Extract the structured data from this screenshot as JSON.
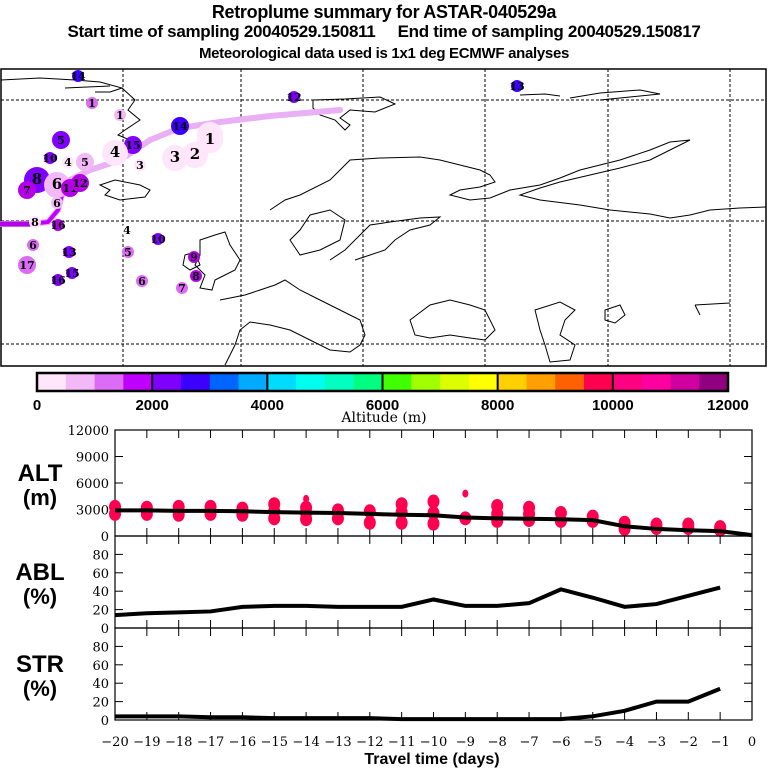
{
  "header": {
    "title": "Retroplume summary for ASTAR-040529a",
    "start_label": "Start time of sampling 20040529.150811",
    "end_label": "End time of sampling 20040529.150817",
    "met_label": "Meteorological data used is 1x1 deg ECMWF analyses"
  },
  "map": {
    "description": "Retroplume track map over North Atlantic / Europe with cluster markers labelled by travel day, colored by altitude",
    "track_color": "#eab0f5",
    "track_color_low": "#b400e6",
    "clusters": [
      {
        "label": "14",
        "color": "#3c00ff",
        "size": "small"
      },
      {
        "label": "1",
        "color": "#dc6cf5",
        "size": "small"
      },
      {
        "label": "1",
        "color": "#f3b8f7",
        "size": "small"
      },
      {
        "label": "12",
        "color": "#8000ff",
        "size": "small"
      },
      {
        "label": "13",
        "color": "#3c00ff",
        "size": "small"
      },
      {
        "label": "14",
        "color": "#3c00ff",
        "size": "medium"
      },
      {
        "label": "1",
        "color": "#ffe6fb",
        "size": "large"
      },
      {
        "label": "1",
        "color": "#ffe6fb",
        "size": "large"
      },
      {
        "label": "3",
        "color": "#ffe6fb",
        "size": "large"
      },
      {
        "label": "2",
        "color": "#ffe6fb",
        "size": "large"
      },
      {
        "label": "15",
        "color": "#8000ff",
        "size": "medium"
      },
      {
        "label": "4",
        "color": "#ffe6fb",
        "size": "large"
      },
      {
        "label": "3",
        "color": "#ffe6fb",
        "size": "small"
      },
      {
        "label": "5",
        "color": "#8000ff",
        "size": "medium"
      },
      {
        "label": "10",
        "color": "#8000ff",
        "size": "small"
      },
      {
        "label": "4",
        "color": "#ffe6fb",
        "size": "small"
      },
      {
        "label": "5",
        "color": "#f3b8f7",
        "size": "medium"
      },
      {
        "label": "8",
        "color": "#8000ff",
        "size": "large"
      },
      {
        "label": "7",
        "color": "#b400e6",
        "size": "medium"
      },
      {
        "label": "6",
        "color": "#f3b8f7",
        "size": "large"
      },
      {
        "label": "11",
        "color": "#b400e6",
        "size": "medium"
      },
      {
        "label": "12",
        "color": "#b400e6",
        "size": "medium"
      },
      {
        "label": "6",
        "color": "#f3b8f7",
        "size": "small"
      },
      {
        "label": "8",
        "color": "#ffe6fb",
        "size": "small"
      },
      {
        "label": "16",
        "color": "#b400e6",
        "size": "small"
      },
      {
        "label": "6",
        "color": "#dc6cf5",
        "size": "small"
      },
      {
        "label": "17",
        "color": "#dc6cf5",
        "size": "medium"
      },
      {
        "label": "13",
        "color": "#8000ff",
        "size": "small"
      },
      {
        "label": "15",
        "color": "#8000ff",
        "size": "small"
      },
      {
        "label": "16",
        "color": "#8000ff",
        "size": "small"
      },
      {
        "label": "4",
        "color": "#ffffff",
        "size": "small"
      },
      {
        "label": "5",
        "color": "#dc6cf5",
        "size": "small"
      },
      {
        "label": "10",
        "color": "#8000ff",
        "size": "small"
      },
      {
        "label": "6",
        "color": "#dc6cf5",
        "size": "small"
      },
      {
        "label": "9",
        "color": "#b400e6",
        "size": "small"
      },
      {
        "label": "8",
        "color": "#b400e6",
        "size": "small"
      },
      {
        "label": "7",
        "color": "#dc6cf5",
        "size": "small"
      }
    ]
  },
  "colorbar": {
    "colors": [
      "#ffe6fb",
      "#f3b8f7",
      "#dc6cf5",
      "#c000ff",
      "#8000ff",
      "#3c00ff",
      "#0064ff",
      "#00aaff",
      "#00dcff",
      "#00ffee",
      "#00ffc0",
      "#00ff80",
      "#40ff00",
      "#a0ff00",
      "#dcff00",
      "#ffff00",
      "#ffd000",
      "#ffa000",
      "#ff6000",
      "#ff0050",
      "#ff0080",
      "#ff00a0",
      "#d000a0",
      "#900080"
    ],
    "tick_labels": [
      "0",
      "2000",
      "4000",
      "6000",
      "8000",
      "10000",
      "12000"
    ],
    "title": "Altitude (m)"
  },
  "chart_data": [
    {
      "type": "scatter",
      "name": "ALT",
      "ylabel": "ALT\n(m)",
      "ylabel_line1": "ALT",
      "ylabel_line2": "(m)",
      "ylim": [
        0,
        12000
      ],
      "yticks": [
        "0",
        "3000",
        "6000",
        "9000",
        "12000"
      ],
      "xlim": [
        -20,
        0
      ],
      "marker_color": "#ff0050",
      "mean_line": {
        "x": [
          -20,
          -19,
          -18,
          -17,
          -16,
          -15,
          -14,
          -13,
          -12,
          -11,
          -10,
          -9,
          -8,
          -7,
          -6,
          -5,
          -4,
          -3,
          -2,
          -1,
          0
        ],
        "y": [
          2900,
          2900,
          2850,
          2850,
          2800,
          2700,
          2650,
          2600,
          2500,
          2400,
          2350,
          2100,
          2000,
          1950,
          1900,
          1800,
          1100,
          800,
          650,
          550,
          100
        ]
      },
      "clusters": [
        {
          "x": -20,
          "y": [
            2500,
            3300
          ]
        },
        {
          "x": -19,
          "y": [
            2500,
            3200
          ]
        },
        {
          "x": -18,
          "y": [
            2400,
            3300
          ]
        },
        {
          "x": -17,
          "y": [
            2500,
            3300
          ]
        },
        {
          "x": -16,
          "y": [
            2400,
            3100
          ]
        },
        {
          "x": -15,
          "y": [
            2000,
            2800,
            3600
          ]
        },
        {
          "x": -14,
          "y": [
            1900,
            2600,
            3200,
            4200
          ]
        },
        {
          "x": -13,
          "y": [
            2000,
            2900
          ]
        },
        {
          "x": -12,
          "y": [
            1500,
            2800
          ]
        },
        {
          "x": -11,
          "y": [
            1500,
            2700,
            3600
          ]
        },
        {
          "x": -10,
          "y": [
            1400,
            2600,
            3900
          ]
        },
        {
          "x": -9,
          "y": [
            2000,
            4800
          ]
        },
        {
          "x": -8,
          "y": [
            1700,
            2500,
            3400
          ]
        },
        {
          "x": -7,
          "y": [
            1800,
            2500,
            3200
          ]
        },
        {
          "x": -6,
          "y": [
            1700,
            2600
          ]
        },
        {
          "x": -5,
          "y": [
            1700,
            2200
          ]
        },
        {
          "x": -4,
          "y": [
            800,
            1500
          ]
        },
        {
          "x": -3,
          "y": [
            900,
            1300
          ]
        },
        {
          "x": -2,
          "y": [
            900,
            1300
          ]
        },
        {
          "x": -1,
          "y": [
            700,
            1000
          ]
        }
      ]
    },
    {
      "type": "line",
      "name": "ABL",
      "ylabel_line1": "ABL",
      "ylabel_line2": "(%)",
      "ylim": [
        0,
        100
      ],
      "yticks": [
        "0",
        "20",
        "40",
        "60",
        "80"
      ],
      "x": [
        -20,
        -19,
        -18,
        -17,
        -16,
        -15,
        -14,
        -13,
        -12,
        -11,
        -10,
        -9,
        -8,
        -7,
        -6,
        -5,
        -4,
        -3,
        -2,
        -1
      ],
      "y": [
        14,
        16,
        17,
        18,
        23,
        24,
        24,
        23,
        23,
        23,
        31,
        24,
        24,
        27,
        42,
        33,
        23,
        26,
        35,
        44
      ]
    },
    {
      "type": "line",
      "name": "STR",
      "ylabel_line1": "STR",
      "ylabel_line2": "(%)",
      "ylim": [
        0,
        100
      ],
      "yticks": [
        "0",
        "20",
        "40",
        "60",
        "80"
      ],
      "x": [
        -20,
        -19,
        -18,
        -17,
        -16,
        -15,
        -14,
        -13,
        -12,
        -11,
        -10,
        -9,
        -8,
        -7,
        -6,
        -5,
        -4,
        -3,
        -2,
        -1
      ],
      "y": [
        4,
        4,
        4,
        3,
        3,
        2,
        2,
        2,
        2,
        1,
        1,
        1,
        1,
        1,
        1,
        4,
        10,
        20,
        20,
        34
      ]
    }
  ],
  "xaxis": {
    "tick_labels": [
      "-20",
      "-19",
      "-18",
      "-17",
      "-16",
      "-15",
      "-14",
      "-13",
      "-12",
      "-11",
      "-10",
      "-9",
      "-8",
      "-7",
      "-6",
      "-5",
      "-4",
      "-3",
      "-2",
      "-1",
      "0"
    ],
    "title": "Travel time (days)"
  }
}
